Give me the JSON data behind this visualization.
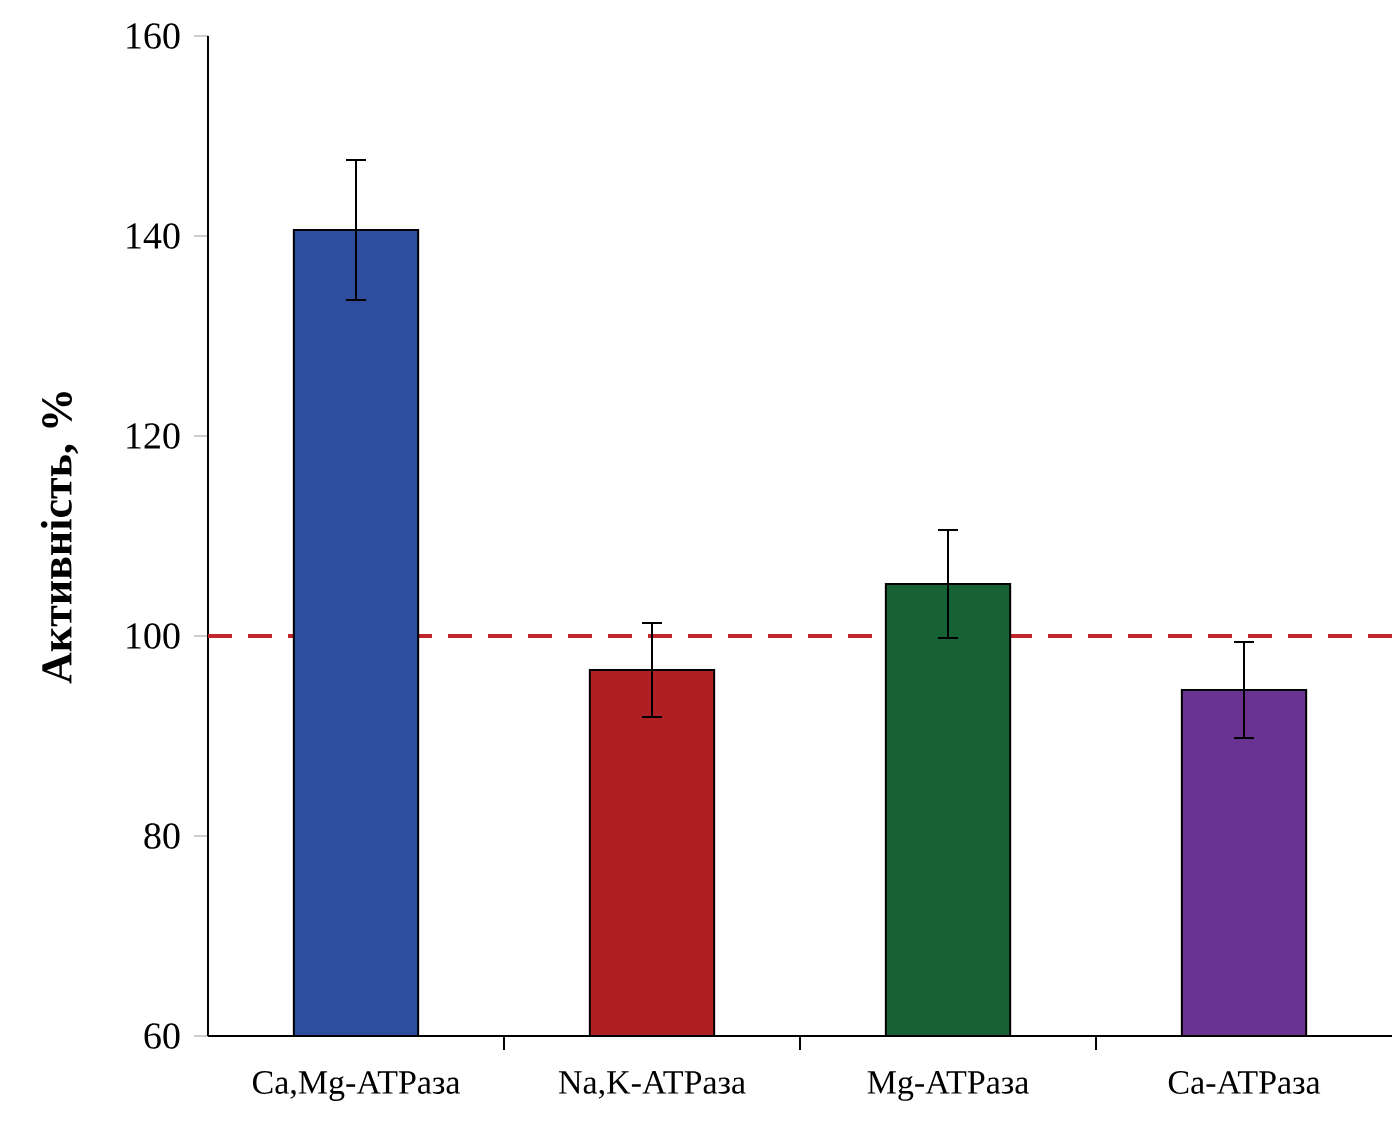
{
  "chart_data": {
    "type": "bar",
    "ylabel": "Активність, %",
    "categories": [
      "Ca,Mg-ATPаза",
      "Na,K-ATPаза",
      "Mg-ATPаза",
      "Ca-ATPаза"
    ],
    "values": [
      140.6,
      96.6,
      105.2,
      94.6
    ],
    "errors": [
      7,
      4.7,
      5.4,
      4.8
    ],
    "colors": [
      "#2e4d9e",
      "#b01f24",
      "#166235",
      "#6a3291"
    ],
    "ylim": [
      60,
      160
    ],
    "yticks": [
      60,
      80,
      100,
      120,
      140,
      160
    ],
    "ref_lines": [
      {
        "axis": "y",
        "value": 100,
        "color": "#c0262c",
        "line_style": "dashed"
      }
    ],
    "grid": false
  }
}
